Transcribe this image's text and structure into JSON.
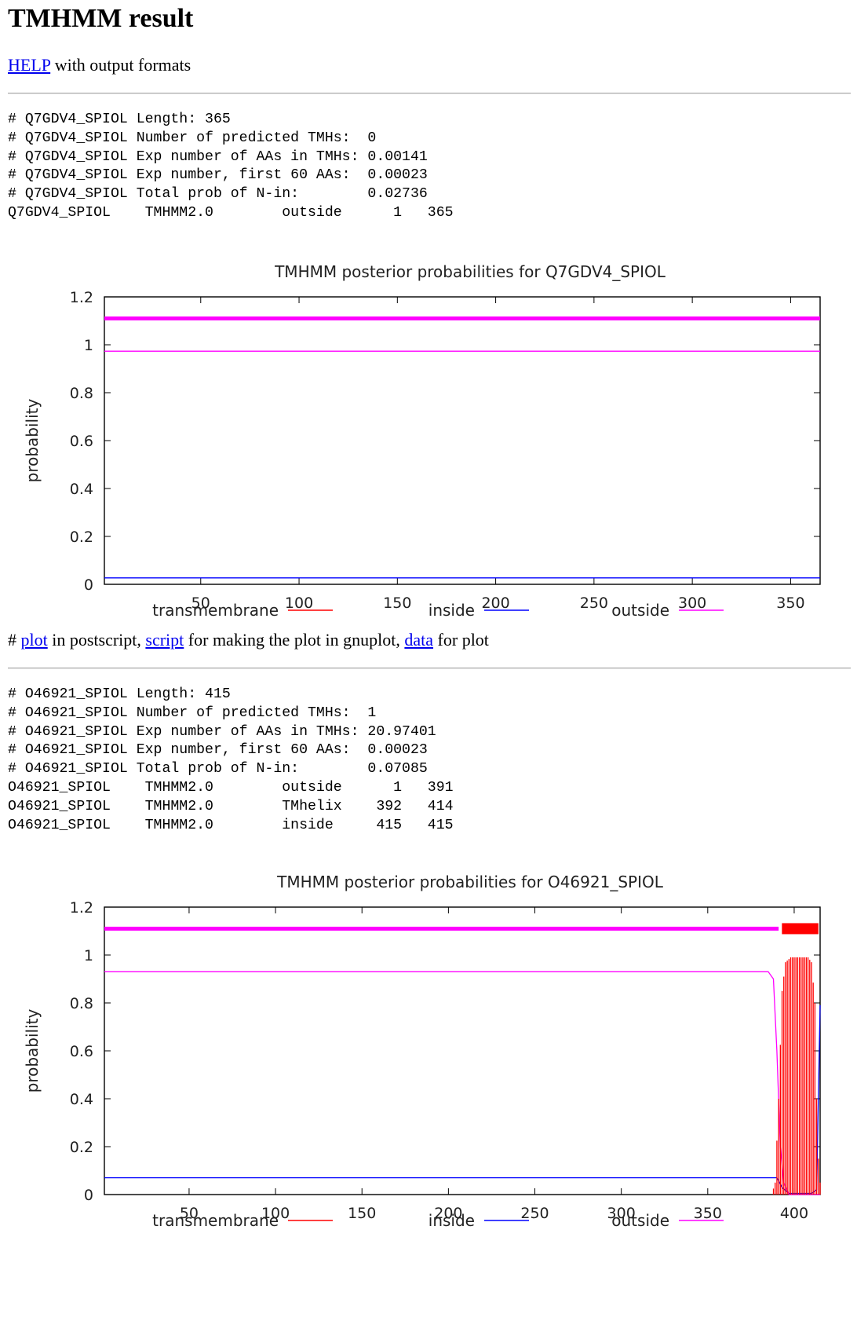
{
  "page": {
    "title": "TMHMM result",
    "help_link": "HELP",
    "help_suffix": " with output formats"
  },
  "colors": {
    "transmembrane": "#ff0000",
    "inside": "#0000ff",
    "outside": "#ff00ff",
    "link": "#0000ee"
  },
  "entries": [
    {
      "id": "Q7GDV4_SPIOL",
      "summary_lines": [
        "# Q7GDV4_SPIOL Length: 365",
        "# Q7GDV4_SPIOL Number of predicted TMHs:  0",
        "# Q7GDV4_SPIOL Exp number of AAs in TMHs: 0.00141",
        "# Q7GDV4_SPIOL Exp number, first 60 AAs:  0.00023",
        "# Q7GDV4_SPIOL Total prob of N-in:        0.02736",
        "Q7GDV4_SPIOL\tTMHMM2.0\toutside\t     1   365"
      ],
      "links_line": {
        "prefix": "# ",
        "plot": "plot",
        "plot_suffix": " in postscript, ",
        "script": "script",
        "script_suffix": " for making the plot in gnuplot, ",
        "data": "data",
        "data_suffix": " for plot"
      }
    },
    {
      "id": "O46921_SPIOL",
      "summary_lines": [
        "# O46921_SPIOL Length: 415",
        "# O46921_SPIOL Number of predicted TMHs:  1",
        "# O46921_SPIOL Exp number of AAs in TMHs: 20.97401",
        "# O46921_SPIOL Exp number, first 60 AAs:  0.00023",
        "# O46921_SPIOL Total prob of N-in:        0.07085",
        "O46921_SPIOL\tTMHMM2.0\toutside\t     1   391",
        "O46921_SPIOL\tTMHMM2.0\tTMhelix\t   392   414",
        "O46921_SPIOL\tTMHMM2.0\tinside\t   415   415"
      ]
    }
  ],
  "chart_data": [
    {
      "type": "line",
      "title": "TMHMM posterior probabilities for Q7GDV4_SPIOL",
      "ylabel": "probability",
      "xlim": [
        1,
        365
      ],
      "ylim": [
        0,
        1.2
      ],
      "xticks": [
        50,
        100,
        150,
        200,
        250,
        300,
        350
      ],
      "yticks": [
        0,
        0.2,
        0.4,
        0.6,
        0.8,
        1,
        1.2
      ],
      "ytick_labels": [
        "0",
        "0.2",
        "0.4",
        "0.6",
        "0.8",
        "1",
        "1.2"
      ],
      "legend": [
        "transmembrane",
        "inside",
        "outside"
      ],
      "legend_position": "bottom",
      "series": [
        {
          "name": "inside",
          "points": [
            [
              1,
              0.027
            ],
            [
              365,
              0.027
            ]
          ]
        },
        {
          "name": "outside",
          "points": [
            [
              1,
              0.973
            ],
            [
              365,
              0.973
            ]
          ]
        },
        {
          "name": "transmembrane",
          "points": [
            [
              1,
              0.0
            ],
            [
              365,
              0.0
            ]
          ]
        }
      ],
      "topology_bars": [
        {
          "label": "outside",
          "start": 1,
          "end": 365,
          "y": 1.11
        }
      ]
    },
    {
      "type": "line",
      "title": "TMHMM posterior probabilities for O46921_SPIOL",
      "ylabel": "probability",
      "xlim": [
        1,
        415
      ],
      "ylim": [
        0,
        1.2
      ],
      "xticks": [
        50,
        100,
        150,
        200,
        250,
        300,
        350,
        400
      ],
      "yticks": [
        0,
        0.2,
        0.4,
        0.6,
        0.8,
        1,
        1.2
      ],
      "ytick_labels": [
        "0",
        "0.2",
        "0.4",
        "0.6",
        "0.8",
        "1",
        "1.2"
      ],
      "legend": [
        "transmembrane",
        "inside",
        "outside"
      ],
      "legend_position": "bottom",
      "series": [
        {
          "name": "inside",
          "points": [
            [
              1,
              0.07
            ],
            [
              385,
              0.07
            ],
            [
              390,
              0.07
            ],
            [
              393,
              0.03
            ],
            [
              397,
              0.005
            ],
            [
              410,
              0.005
            ],
            [
              413,
              0.02
            ],
            [
              415,
              0.79
            ]
          ]
        },
        {
          "name": "outside",
          "points": [
            [
              1,
              0.93
            ],
            [
              385,
              0.93
            ],
            [
              388,
              0.9
            ],
            [
              390,
              0.6
            ],
            [
              392,
              0.2
            ],
            [
              394,
              0.05
            ],
            [
              397,
              0.0
            ],
            [
              415,
              0.0
            ]
          ]
        },
        {
          "name": "transmembrane",
          "points": [
            [
              1,
              0.0
            ],
            [
              387,
              0.0
            ],
            [
              389,
              0.05
            ],
            [
              391,
              0.4
            ],
            [
              393,
              0.85
            ],
            [
              395,
              0.97
            ],
            [
              398,
              0.99
            ],
            [
              408,
              0.99
            ],
            [
              410,
              0.97
            ],
            [
              412,
              0.8
            ],
            [
              413,
              0.4
            ],
            [
              414,
              0.15
            ],
            [
              415,
              0.05
            ]
          ]
        }
      ],
      "topology_bars": [
        {
          "label": "outside",
          "start": 1,
          "end": 391,
          "y": 1.11
        },
        {
          "label": "TMhelix",
          "start": 392,
          "end": 414,
          "y": 1.11
        }
      ]
    }
  ]
}
